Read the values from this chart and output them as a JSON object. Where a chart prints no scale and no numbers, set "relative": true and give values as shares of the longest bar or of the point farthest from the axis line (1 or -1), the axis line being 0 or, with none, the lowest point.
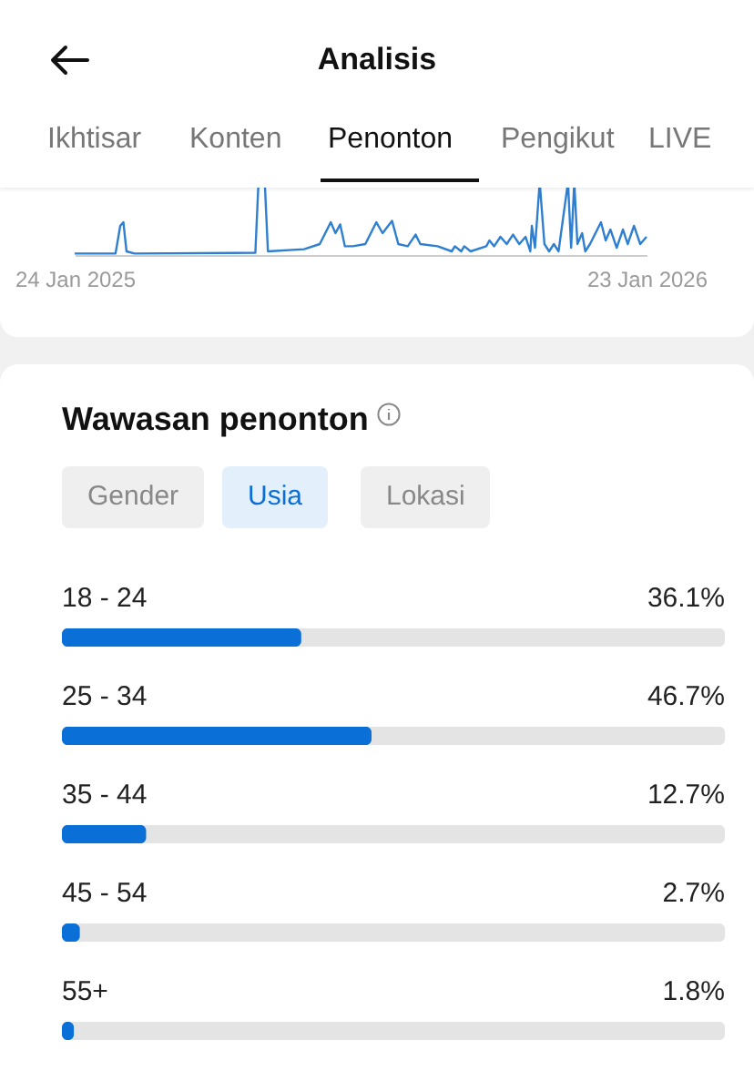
{
  "chart_data": [
    {
      "type": "other",
      "title": "Analisis",
      "annotations": [
        "Ikhtisar",
        "Konten",
        "Penonton",
        "Pengikut",
        "LIVE"
      ]
    },
    {
      "type": "line",
      "relative": true,
      "color": "#2f7fd0",
      "grid": false,
      "tick_labels": "x",
      "xlim": [
        "2025-01-24",
        "2026-01-23"
      ],
      "xticks": [
        {
          "value": "2025-01-24",
          "label": "24 Jan 2025"
        },
        {
          "value": "2026-01-23",
          "label": "23 Jan 2026"
        }
      ],
      "x": [
        "2025-01-24",
        "2025-02-19",
        "2025-02-22",
        "2025-02-24",
        "2025-02-26",
        "2025-03-03",
        "2025-05-19",
        "2025-05-21",
        "2025-05-25",
        "2025-05-27",
        "2025-06-19",
        "2025-06-29",
        "2025-07-06",
        "2025-07-09",
        "2025-07-12",
        "2025-07-15",
        "2025-07-20",
        "2025-07-28",
        "2025-08-04",
        "2025-08-08",
        "2025-08-14",
        "2025-08-18",
        "2025-08-24",
        "2025-08-29",
        "2025-09-01",
        "2025-09-12",
        "2025-09-21",
        "2025-09-23",
        "2025-09-27",
        "2025-09-29",
        "2025-10-03",
        "2025-10-13",
        "2025-10-15",
        "2025-10-18",
        "2025-10-22",
        "2025-10-26",
        "2025-10-30",
        "2025-11-03",
        "2025-11-07",
        "2025-11-10",
        "2025-11-11",
        "2025-11-13",
        "2025-11-16",
        "2025-11-19",
        "2025-11-22",
        "2025-11-25",
        "2025-11-28",
        "2025-12-04",
        "2025-12-06",
        "2025-12-08",
        "2025-12-10",
        "2025-12-13",
        "2025-12-15",
        "2025-12-18",
        "2025-12-25",
        "2025-12-28",
        "2025-12-31",
        "2026-01-04",
        "2026-01-08",
        "2026-01-11",
        "2026-01-15",
        "2026-01-19",
        "2026-01-23"
      ],
      "values": [
        0.02,
        0.02,
        0.4,
        0.45,
        0.05,
        0.02,
        0.03,
        1,
        1,
        0.05,
        0.08,
        0.15,
        0.45,
        0.3,
        0.42,
        0.12,
        0.12,
        0.15,
        0.45,
        0.3,
        0.47,
        0.15,
        0.12,
        0.28,
        0.15,
        0.12,
        0.05,
        0.12,
        0.05,
        0.12,
        0.05,
        0.12,
        0.2,
        0.12,
        0.25,
        0.15,
        0.28,
        0.15,
        0.25,
        0.05,
        0.4,
        0.1,
        1,
        0.15,
        0.05,
        0.15,
        0.05,
        1,
        0.1,
        1,
        0.15,
        0.3,
        0.05,
        0.15,
        0.45,
        0.2,
        0.35,
        0.1,
        0.35,
        0.15,
        0.4,
        0.15,
        0.25
      ]
    },
    {
      "type": "bar",
      "orientation": "horizontal",
      "title": "Wawasan penonton",
      "annotations": [
        "Gender",
        "Usia",
        "Lokasi"
      ],
      "categories": [
        "18 - 24",
        "25 - 34",
        "35 - 44",
        "45 - 54",
        "55+"
      ],
      "values": [
        36.1,
        46.7,
        12.7,
        2.7,
        1.8
      ],
      "value_labels": [
        "36.1%",
        "46.7%",
        "12.7%",
        "2.7%",
        "1.8%"
      ],
      "color": "#0a6fd6",
      "xlim": [
        0,
        100
      ],
      "tick_labels": "y",
      "grid": false
    }
  ]
}
